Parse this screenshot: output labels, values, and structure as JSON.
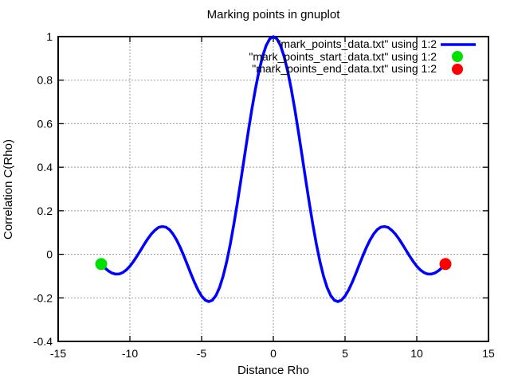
{
  "title": "Marking points in gnuplot",
  "chart_data": {
    "type": "line",
    "title": "Marking points in gnuplot",
    "xlabel": "Distance Rho",
    "ylabel": "Correlation C(Rho)",
    "xlim": [
      -15,
      15
    ],
    "ylim": [
      -0.4,
      1
    ],
    "grid": true,
    "legend_position": "top-right-inside",
    "xticks": {
      "values": [
        -15,
        -10,
        -5,
        0,
        5,
        10,
        15
      ],
      "labels": [
        "-15",
        "-10",
        "-5",
        "0",
        "5",
        "10",
        "15"
      ]
    },
    "yticks": {
      "values": [
        -0.4,
        -0.2,
        0,
        0.2,
        0.4,
        0.6,
        0.8,
        1
      ],
      "labels": [
        "-0.4",
        "-0.2",
        "0",
        "0.2",
        "0.4",
        "0.6",
        "0.8",
        "1"
      ]
    },
    "series": [
      {
        "name": "\"mark_points_data.txt\" using 1:2",
        "slug": "correlation-curve",
        "type": "line",
        "color": "#0000ff",
        "function": "sin(x)/x",
        "x_range": [
          -12,
          12
        ],
        "points": [
          [
            -12,
            -0.0447
          ],
          [
            -11.75,
            -0.062
          ],
          [
            -11.5,
            -0.0761
          ],
          [
            -11.25,
            -0.086
          ],
          [
            -11,
            -0.0909
          ],
          [
            -10.75,
            -0.0902
          ],
          [
            -10.5,
            -0.0838
          ],
          [
            -10.25,
            -0.0717
          ],
          [
            -10,
            -0.0544
          ],
          [
            -9.75,
            -0.0328
          ],
          [
            -9.5,
            -0.0079
          ],
          [
            -9.25,
            0.0188
          ],
          [
            -9,
            0.0458
          ],
          [
            -8.75,
            0.0714
          ],
          [
            -8.5,
            0.0939
          ],
          [
            -8.25,
            0.111
          ],
          [
            -8,
            0.1237
          ],
          [
            -7.75,
            0.1276
          ],
          [
            -7.5,
            0.1251
          ],
          [
            -7.25,
            0.1138
          ],
          [
            -7,
            0.0939
          ],
          [
            -6.75,
            0.0667
          ],
          [
            -6.5,
            0.0331
          ],
          [
            -6.25,
            -0.0053
          ],
          [
            -6,
            -0.0466
          ],
          [
            -5.75,
            -0.0884
          ],
          [
            -5.5,
            -0.1283
          ],
          [
            -5.25,
            -0.1637
          ],
          [
            -5,
            -0.1918
          ],
          [
            -4.75,
            -0.2104
          ],
          [
            -4.5,
            -0.2172
          ],
          [
            -4.25,
            -0.2106
          ],
          [
            -4,
            -0.1892
          ],
          [
            -3.75,
            -0.1524
          ],
          [
            -3.5,
            -0.1002
          ],
          [
            -3.25,
            -0.0333
          ],
          [
            -3,
            0.047
          ],
          [
            -2.75,
            0.1388
          ],
          [
            -2.5,
            0.2394
          ],
          [
            -2.25,
            0.3458
          ],
          [
            -2,
            0.4546
          ],
          [
            -1.75,
            0.5623
          ],
          [
            -1.5,
            0.665
          ],
          [
            -1.25,
            0.7592
          ],
          [
            -1,
            0.8415
          ],
          [
            -0.75,
            0.9089
          ],
          [
            -0.5,
            0.9589
          ],
          [
            -0.25,
            0.9896
          ],
          [
            0,
            1
          ],
          [
            0.25,
            0.9896
          ],
          [
            0.5,
            0.9589
          ],
          [
            0.75,
            0.9089
          ],
          [
            1,
            0.8415
          ],
          [
            1.25,
            0.7592
          ],
          [
            1.5,
            0.665
          ],
          [
            1.75,
            0.5623
          ],
          [
            2,
            0.4546
          ],
          [
            2.25,
            0.3458
          ],
          [
            2.5,
            0.2394
          ],
          [
            2.75,
            0.1388
          ],
          [
            3,
            0.047
          ],
          [
            3.25,
            -0.0333
          ],
          [
            3.5,
            -0.1002
          ],
          [
            3.75,
            -0.1524
          ],
          [
            4,
            -0.1892
          ],
          [
            4.25,
            -0.2106
          ],
          [
            4.5,
            -0.2172
          ],
          [
            4.75,
            -0.2104
          ],
          [
            5,
            -0.1918
          ],
          [
            5.25,
            -0.1637
          ],
          [
            5.5,
            -0.1283
          ],
          [
            5.75,
            -0.0884
          ],
          [
            6,
            -0.0466
          ],
          [
            6.25,
            -0.0053
          ],
          [
            6.5,
            0.0331
          ],
          [
            6.75,
            0.0667
          ],
          [
            7,
            0.0939
          ],
          [
            7.25,
            0.1138
          ],
          [
            7.5,
            0.1251
          ],
          [
            7.75,
            0.1276
          ],
          [
            8,
            0.1237
          ],
          [
            8.25,
            0.111
          ],
          [
            8.5,
            0.0939
          ],
          [
            8.75,
            0.0714
          ],
          [
            9,
            0.0458
          ],
          [
            9.25,
            0.0188
          ],
          [
            9.5,
            -0.0079
          ],
          [
            9.75,
            -0.0328
          ],
          [
            10,
            -0.0544
          ],
          [
            10.25,
            -0.0717
          ],
          [
            10.5,
            -0.0838
          ],
          [
            10.75,
            -0.0902
          ],
          [
            11,
            -0.0909
          ],
          [
            11.25,
            -0.086
          ],
          [
            11.5,
            -0.0761
          ],
          [
            11.75,
            -0.062
          ],
          [
            12,
            -0.0447
          ]
        ]
      },
      {
        "name": "\"mark_points_start_data.txt\" using 1:2",
        "slug": "start-point",
        "type": "scatter",
        "color": "#00e000",
        "points": [
          [
            -12,
            -0.0447
          ]
        ]
      },
      {
        "name": "\"mark_points_end_data.txt\" using 1:2",
        "slug": "end-point",
        "type": "scatter",
        "color": "#ff0000",
        "points": [
          [
            12,
            -0.0447
          ]
        ]
      }
    ]
  },
  "legend": {
    "entries": [
      {
        "label": "\"mark_points_data.txt\" using 1:2",
        "sample": "line",
        "color": "#0000ff"
      },
      {
        "label": "\"mark_points_start_data.txt\" using 1:2",
        "sample": "point",
        "color": "#00e000"
      },
      {
        "label": "\"mark_points_end_data.txt\" using 1:2",
        "sample": "point",
        "color": "#ff0000"
      }
    ]
  },
  "colors": {
    "curve": "#0000ff",
    "start_point": "#00e000",
    "end_point": "#ff0000",
    "grid": "#9b9b9b",
    "border": "#000000",
    "text": "#000000",
    "background": "#ffffff"
  }
}
